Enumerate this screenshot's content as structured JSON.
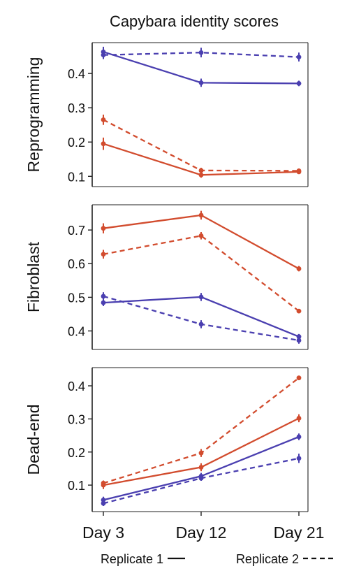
{
  "title": "Capybara identity scores",
  "colors": {
    "red": "#d24c2e",
    "blue": "#4a3fb0",
    "axis": "#222222"
  },
  "legend": {
    "replicate1_label": "Replicate 1",
    "replicate2_label": "Replicate 2"
  },
  "chart_data": [
    {
      "type": "line",
      "ylabel": "Reprogramming",
      "categories": [
        "Day 3",
        "Day 12",
        "Day 21"
      ],
      "ylim": [
        0.07,
        0.49
      ],
      "yticks": [
        0.1,
        0.2,
        0.3,
        0.4
      ],
      "series": [
        {
          "color": "blue",
          "replicate": "Replicate 1",
          "style": "solid",
          "values": [
            0.463,
            0.373,
            0.371
          ],
          "error": [
            0.015,
            0.012,
            0.008
          ]
        },
        {
          "color": "blue",
          "replicate": "Replicate 2",
          "style": "dashed",
          "values": [
            0.454,
            0.461,
            0.448
          ],
          "error": [
            0.012,
            0.014,
            0.013
          ]
        },
        {
          "color": "red",
          "replicate": "Replicate 1",
          "style": "solid",
          "values": [
            0.195,
            0.104,
            0.113
          ],
          "error": [
            0.018,
            0.008,
            0.006
          ]
        },
        {
          "color": "red",
          "replicate": "Replicate 2",
          "style": "dashed",
          "values": [
            0.265,
            0.117,
            0.116
          ],
          "error": [
            0.015,
            0.008,
            0.005
          ]
        }
      ]
    },
    {
      "type": "line",
      "ylabel": "Fibroblast",
      "categories": [
        "Day 3",
        "Day 12",
        "Day 21"
      ],
      "ylim": [
        0.345,
        0.775
      ],
      "yticks": [
        0.4,
        0.5,
        0.6,
        0.7
      ],
      "series": [
        {
          "color": "red",
          "replicate": "Replicate 1",
          "style": "solid",
          "values": [
            0.705,
            0.744,
            0.585
          ],
          "error": [
            0.015,
            0.013,
            0.008
          ]
        },
        {
          "color": "red",
          "replicate": "Replicate 2",
          "style": "dashed",
          "values": [
            0.628,
            0.683,
            0.459
          ],
          "error": [
            0.013,
            0.011,
            0.005
          ]
        },
        {
          "color": "blue",
          "replicate": "Replicate 1",
          "style": "solid",
          "values": [
            0.484,
            0.501,
            0.383
          ],
          "error": [
            0.01,
            0.012,
            0.008
          ]
        },
        {
          "color": "blue",
          "replicate": "Replicate 2",
          "style": "dashed",
          "values": [
            0.503,
            0.42,
            0.372
          ],
          "error": [
            0.012,
            0.012,
            0.01
          ]
        }
      ]
    },
    {
      "type": "line",
      "ylabel": "Dead-end",
      "categories": [
        "Day 3",
        "Day 12",
        "Day 21"
      ],
      "ylim": [
        0.02,
        0.455
      ],
      "yticks": [
        0.1,
        0.2,
        0.3,
        0.4
      ],
      "series": [
        {
          "color": "red",
          "replicate": "Replicate 1",
          "style": "solid",
          "values": [
            0.1,
            0.154,
            0.302
          ],
          "error": [
            0.012,
            0.012,
            0.012
          ]
        },
        {
          "color": "red",
          "replicate": "Replicate 2",
          "style": "dashed",
          "values": [
            0.106,
            0.197,
            0.424
          ],
          "error": [
            0.008,
            0.012,
            0.006
          ]
        },
        {
          "color": "blue",
          "replicate": "Replicate 1",
          "style": "solid",
          "values": [
            0.055,
            0.127,
            0.246
          ],
          "error": [
            0.01,
            0.01,
            0.01
          ]
        },
        {
          "color": "blue",
          "replicate": "Replicate 2",
          "style": "dashed",
          "values": [
            0.045,
            0.121,
            0.181
          ],
          "error": [
            0.008,
            0.008,
            0.014
          ]
        }
      ]
    }
  ]
}
